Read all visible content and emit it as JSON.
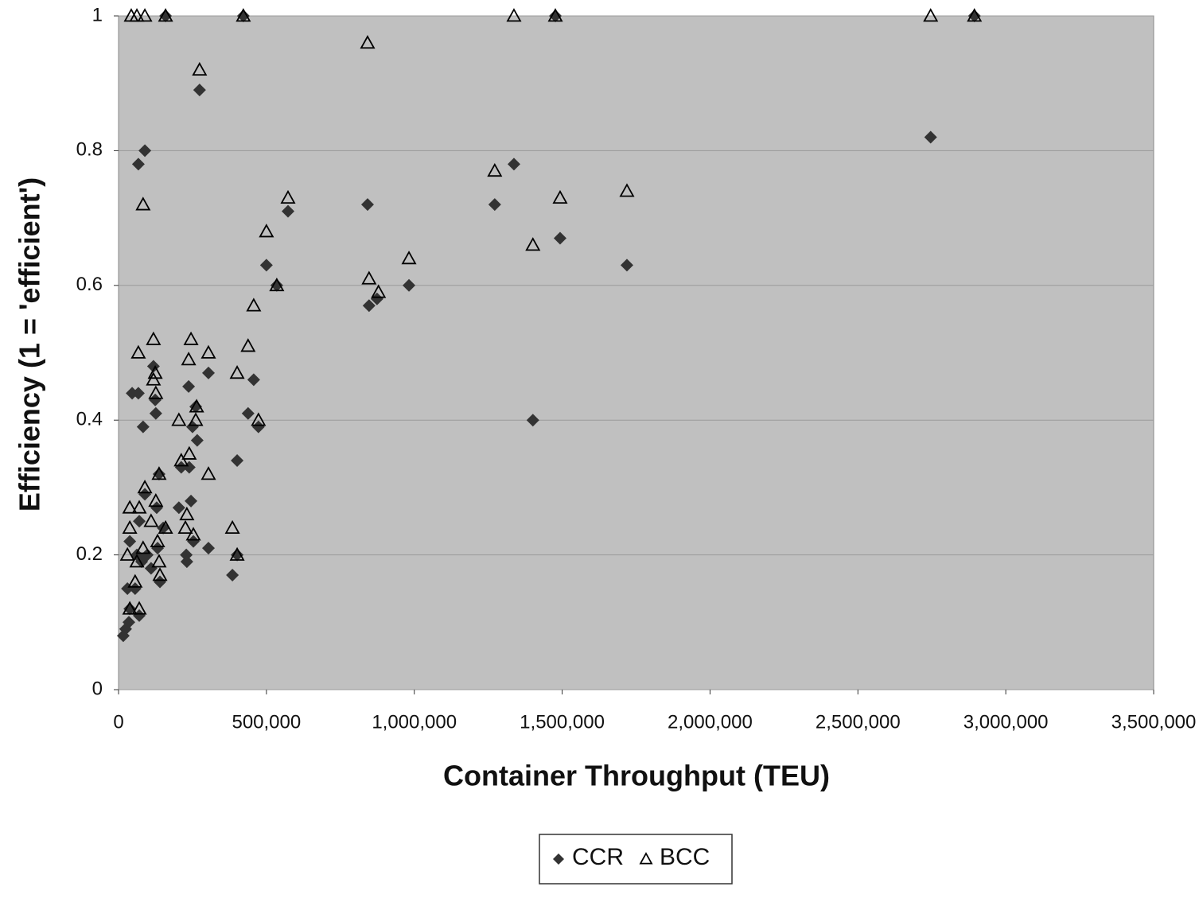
{
  "chart_data": {
    "type": "scatter",
    "xlabel": "Container Throughput (TEU)",
    "ylabel": "Efficiency (1 = 'efficient')",
    "xlim": [
      0,
      3500000
    ],
    "xticks": [
      0,
      {
        "value": 500000,
        "label": "500,000"
      },
      {
        "value": 1000000,
        "label": "1,000,000"
      },
      {
        "value": 1500000,
        "label": "1,500,000"
      },
      {
        "value": 2000000,
        "label": "2,000,000"
      },
      {
        "value": 2500000,
        "label": "2,500,000"
      },
      {
        "value": 3000000,
        "label": "3,000,000"
      },
      {
        "value": 3500000,
        "label": "3,500,000"
      }
    ],
    "ylim": [
      0,
      1
    ],
    "yticks": [
      0,
      0.2,
      0.4,
      0.6,
      0.8,
      1
    ],
    "grid": true,
    "legend": "bottom",
    "series": [
      {
        "name": "CCR",
        "color": "#333333",
        "marker": "diamond",
        "x": [
          16000,
          24000,
          35000,
          38000,
          30000,
          56000,
          70000,
          38000,
          46000,
          67000,
          67000,
          89000,
          83000,
          70000,
          62000,
          78000,
          97000,
          89000,
          110000,
          118000,
          124000,
          126000,
          129000,
          132000,
          137000,
          140000,
          151000,
          159000,
          204000,
          212000,
          229000,
          231000,
          237000,
          239000,
          245000,
          250000,
          253000,
          261000,
          266000,
          274000,
          304000,
          304000,
          385000,
          401000,
          401000,
          422000,
          438000,
          457000,
          473000,
          500000,
          535000,
          573000,
          842000,
          847000,
          874000,
          982000,
          1272000,
          1337000,
          1401000,
          1477000,
          1719000,
          2746000,
          2894000,
          1493000
        ],
        "values": [
          0.08,
          0.09,
          0.1,
          0.12,
          0.15,
          0.15,
          0.11,
          0.22,
          0.44,
          0.44,
          0.78,
          0.8,
          0.39,
          0.25,
          0.2,
          0.19,
          0.2,
          0.29,
          0.18,
          0.48,
          0.43,
          0.41,
          0.27,
          0.21,
          0.32,
          0.16,
          0.24,
          1,
          0.27,
          0.33,
          0.2,
          0.19,
          0.45,
          0.33,
          0.28,
          0.39,
          0.22,
          0.42,
          0.37,
          0.89,
          0.21,
          0.47,
          0.17,
          0.34,
          0.2,
          1,
          0.41,
          0.46,
          0.39,
          0.63,
          0.6,
          0.71,
          0.72,
          0.57,
          0.58,
          0.6,
          0.72,
          0.78,
          0.4,
          1,
          0.63,
          0.82,
          1,
          0.67
        ]
      },
      {
        "name": "BCC",
        "color": "#000000",
        "marker": "triangle",
        "x": [
          43000,
          62000,
          89000,
          159000,
          422000,
          1337000,
          1477000,
          2746000,
          2894000,
          274000,
          842000,
          83000,
          573000,
          500000,
          982000,
          1272000,
          1401000,
          1493000,
          1719000,
          847000,
          879000,
          535000,
          457000,
          438000,
          401000,
          473000,
          67000,
          118000,
          245000,
          304000,
          237000,
          124000,
          118000,
          126000,
          264000,
          261000,
          204000,
          239000,
          212000,
          137000,
          304000,
          89000,
          38000,
          70000,
          126000,
          231000,
          226000,
          38000,
          110000,
          159000,
          385000,
          253000,
          83000,
          132000,
          30000,
          401000,
          137000,
          62000,
          56000,
          140000,
          70000,
          38000
        ],
        "values": [
          1,
          1,
          1,
          1,
          1,
          1,
          1,
          1,
          1,
          0.92,
          0.96,
          0.72,
          0.73,
          0.68,
          0.64,
          0.77,
          0.66,
          0.73,
          0.74,
          0.61,
          0.59,
          0.6,
          0.57,
          0.51,
          0.47,
          0.4,
          0.5,
          0.52,
          0.52,
          0.5,
          0.49,
          0.47,
          0.46,
          0.44,
          0.42,
          0.4,
          0.4,
          0.35,
          0.34,
          0.32,
          0.32,
          0.3,
          0.27,
          0.27,
          0.28,
          0.26,
          0.24,
          0.24,
          0.25,
          0.24,
          0.24,
          0.23,
          0.21,
          0.22,
          0.2,
          0.2,
          0.19,
          0.19,
          0.16,
          0.17,
          0.12,
          0.12
        ]
      }
    ]
  }
}
